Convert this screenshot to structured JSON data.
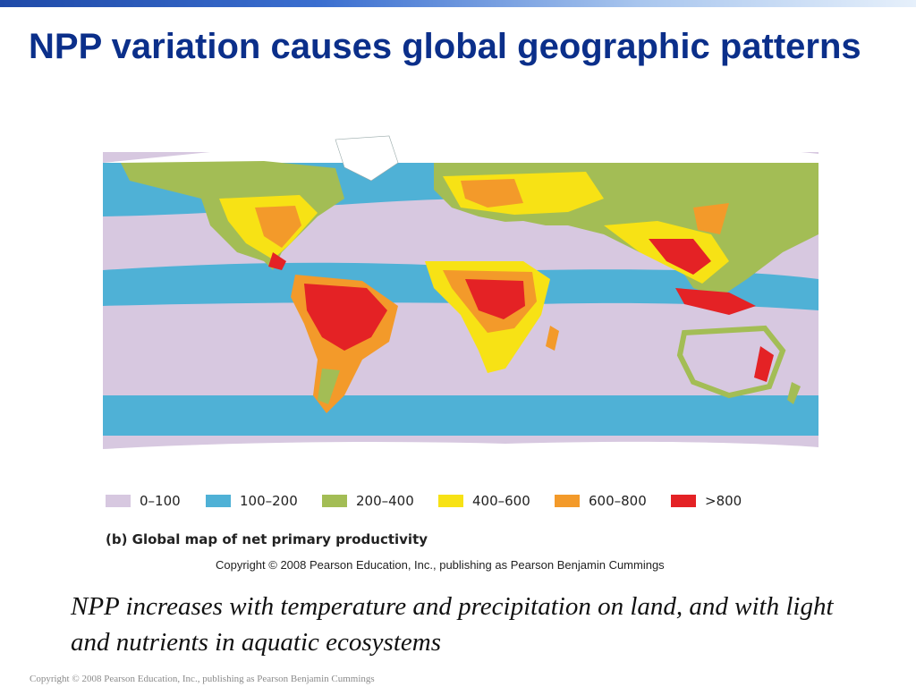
{
  "slide": {
    "title": "NPP variation causes global geographic patterns",
    "body_text": "NPP increases with temperature and precipitation on land, and with light and nutrients in aquatic ecosystems",
    "footer_copyright": "Copyright © 2008 Pearson Education, Inc., publishing as Pearson Benjamin Cummings"
  },
  "figure": {
    "caption": "(b) Global map of net primary productivity",
    "copyright": "Copyright © 2008 Pearson Education, Inc., publishing as Pearson Benjamin Cummings",
    "legend": [
      {
        "label": "0–100",
        "color": "#d7c8e0"
      },
      {
        "label": "100–200",
        "color": "#4fb1d6"
      },
      {
        "label": "200–400",
        "color": "#a3bd55"
      },
      {
        "label": "400–600",
        "color": "#f7e215"
      },
      {
        "label": "600–800",
        "color": "#f39a2a"
      },
      {
        "label": ">800",
        "color": "#e42225"
      }
    ]
  },
  "colors": {
    "title": "#0b2f8a",
    "top_bar": "#1f4aa8",
    "ocean_low": "#d7c8e0",
    "ocean_mid": "#4fb1d6"
  }
}
